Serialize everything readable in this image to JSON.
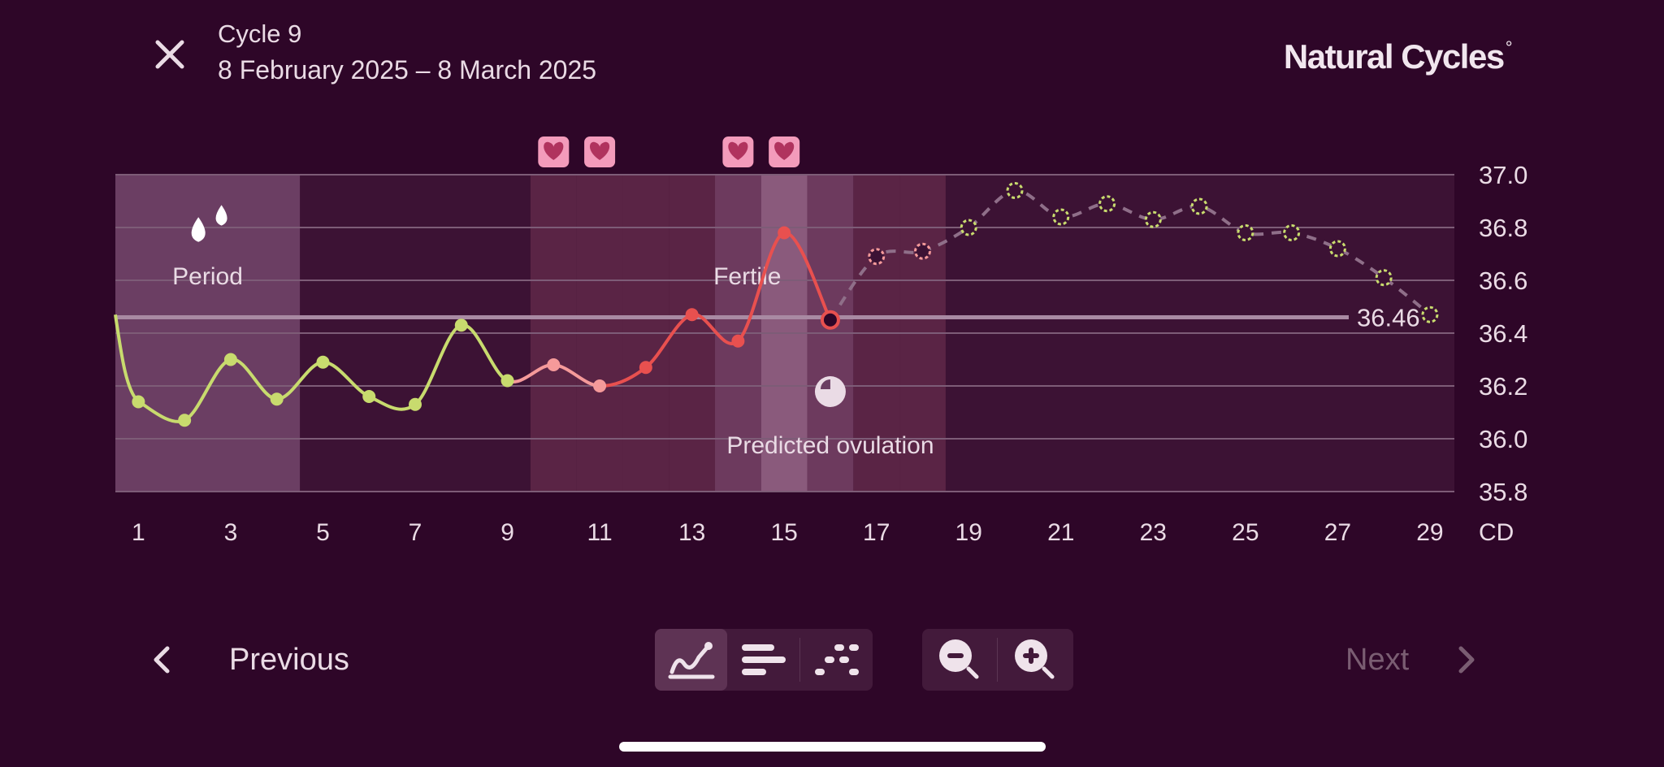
{
  "header": {
    "close_icon": "close-icon",
    "cycle_title": "Cycle 9",
    "cycle_dates": "8 February 2025 – 8 March 2025",
    "brand": "Natural Cycles",
    "brand_mark": "°"
  },
  "chart_data": {
    "type": "line",
    "x_unit_label": "CD",
    "x_tick_labels": [
      "1",
      "3",
      "5",
      "7",
      "9",
      "11",
      "13",
      "15",
      "17",
      "19",
      "21",
      "23",
      "25",
      "27",
      "29"
    ],
    "y_tick_labels": [
      "37.0",
      "36.8",
      "36.6",
      "36.4",
      "36.2",
      "36.0",
      "35.8"
    ],
    "ylim": [
      35.8,
      37.0
    ],
    "xlim": [
      0.5,
      29.5
    ],
    "grid": true,
    "coverline": {
      "value": 36.46,
      "label": "36.46"
    },
    "zones": [
      {
        "label": "Period",
        "from_day": 1,
        "to_day": 4,
        "icon": "period-drops-icon"
      },
      {
        "label": "Fertile",
        "from_day": 10,
        "to_day": 18
      },
      {
        "label": "Predicted ovulation",
        "day": 16,
        "icon": "ovulation-icon"
      }
    ],
    "intercourse_days": [
      10,
      11,
      14,
      15
    ],
    "intercourse_icon": "heart-icon",
    "series": [
      {
        "kind": "measured",
        "points": [
          {
            "x": 1,
            "y": 36.14,
            "status": "green"
          },
          {
            "x": 2,
            "y": 36.07,
            "status": "green"
          },
          {
            "x": 3,
            "y": 36.3,
            "status": "green"
          },
          {
            "x": 4,
            "y": 36.15,
            "status": "green"
          },
          {
            "x": 5,
            "y": 36.29,
            "status": "green"
          },
          {
            "x": 6,
            "y": 36.16,
            "status": "green"
          },
          {
            "x": 7,
            "y": 36.13,
            "status": "green"
          },
          {
            "x": 8,
            "y": 36.43,
            "status": "green"
          },
          {
            "x": 9,
            "y": 36.22,
            "status": "green"
          },
          {
            "x": 10,
            "y": 36.28,
            "status": "light-red"
          },
          {
            "x": 11,
            "y": 36.2,
            "status": "light-red"
          },
          {
            "x": 12,
            "y": 36.27,
            "status": "red"
          },
          {
            "x": 13,
            "y": 36.47,
            "status": "red"
          },
          {
            "x": 14,
            "y": 36.37,
            "status": "red"
          },
          {
            "x": 15,
            "y": 36.78,
            "status": "red"
          },
          {
            "x": 16,
            "y": 36.45,
            "status": "today"
          }
        ]
      },
      {
        "kind": "predicted",
        "points": [
          {
            "x": 17,
            "y": 36.69,
            "status": "predicted-red"
          },
          {
            "x": 18,
            "y": 36.71,
            "status": "predicted-red"
          },
          {
            "x": 19,
            "y": 36.8,
            "status": "predicted-green"
          },
          {
            "x": 20,
            "y": 36.94,
            "status": "predicted-green"
          },
          {
            "x": 21,
            "y": 36.84,
            "status": "predicted-green"
          },
          {
            "x": 22,
            "y": 36.89,
            "status": "predicted-green"
          },
          {
            "x": 23,
            "y": 36.83,
            "status": "predicted-green"
          },
          {
            "x": 24,
            "y": 36.88,
            "status": "predicted-green"
          },
          {
            "x": 25,
            "y": 36.78,
            "status": "predicted-green"
          },
          {
            "x": 26,
            "y": 36.78,
            "status": "predicted-green"
          },
          {
            "x": 27,
            "y": 36.72,
            "status": "predicted-green"
          },
          {
            "x": 28,
            "y": 36.61,
            "status": "predicted-green"
          },
          {
            "x": 29,
            "y": 36.47,
            "status": "predicted-green"
          }
        ]
      }
    ],
    "colors": {
      "background": "#2e0628",
      "green": "#c8db6e",
      "light_red": "#f59a9a",
      "red": "#e8504f",
      "predicted_line": "#8f6f89",
      "grid": "#7d5c77",
      "coverline": "#a98aa3",
      "heart_badge": "#f39bbb",
      "heart": "#b0335e"
    }
  },
  "controls": {
    "previous_label": "Previous",
    "previous_icon": "chevron-left-icon",
    "next_label": "Next",
    "next_icon": "chevron-right-icon",
    "view_modes": [
      "graph-view-icon",
      "bars-view-icon",
      "dots-view-icon"
    ],
    "active_view": "graph-view-icon",
    "zoom_out_icon": "zoom-out-icon",
    "zoom_in_icon": "zoom-in-icon"
  }
}
